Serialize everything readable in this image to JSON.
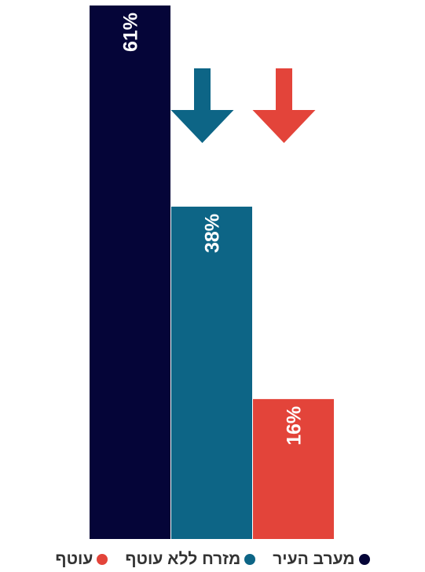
{
  "chart_data": {
    "type": "bar",
    "orientation": "vertical",
    "direction": "rtl",
    "categories": [
      "מערב העיר",
      "מזרח ללא עוטף",
      "עוטף"
    ],
    "values": [
      61,
      38,
      16
    ],
    "labels": [
      "61%",
      "38%",
      "16%"
    ],
    "colors": [
      "#050538",
      "#0d6586",
      "#e3443a"
    ],
    "ylim": [
      0,
      61
    ],
    "grid": false,
    "legend_placement": "bottom",
    "annotations": [
      {
        "type": "down-arrow",
        "category": "מזרח ללא עוטף",
        "color": "#0d6586"
      },
      {
        "type": "down-arrow",
        "category": "עוטף",
        "color": "#e3443a"
      }
    ]
  },
  "legend": {
    "items": [
      {
        "label": "מערב העיר",
        "color": "#050538"
      },
      {
        "label": "מזרח ללא עוטף",
        "color": "#0d6586"
      },
      {
        "label": "עוטף",
        "color": "#e3443a"
      }
    ]
  }
}
